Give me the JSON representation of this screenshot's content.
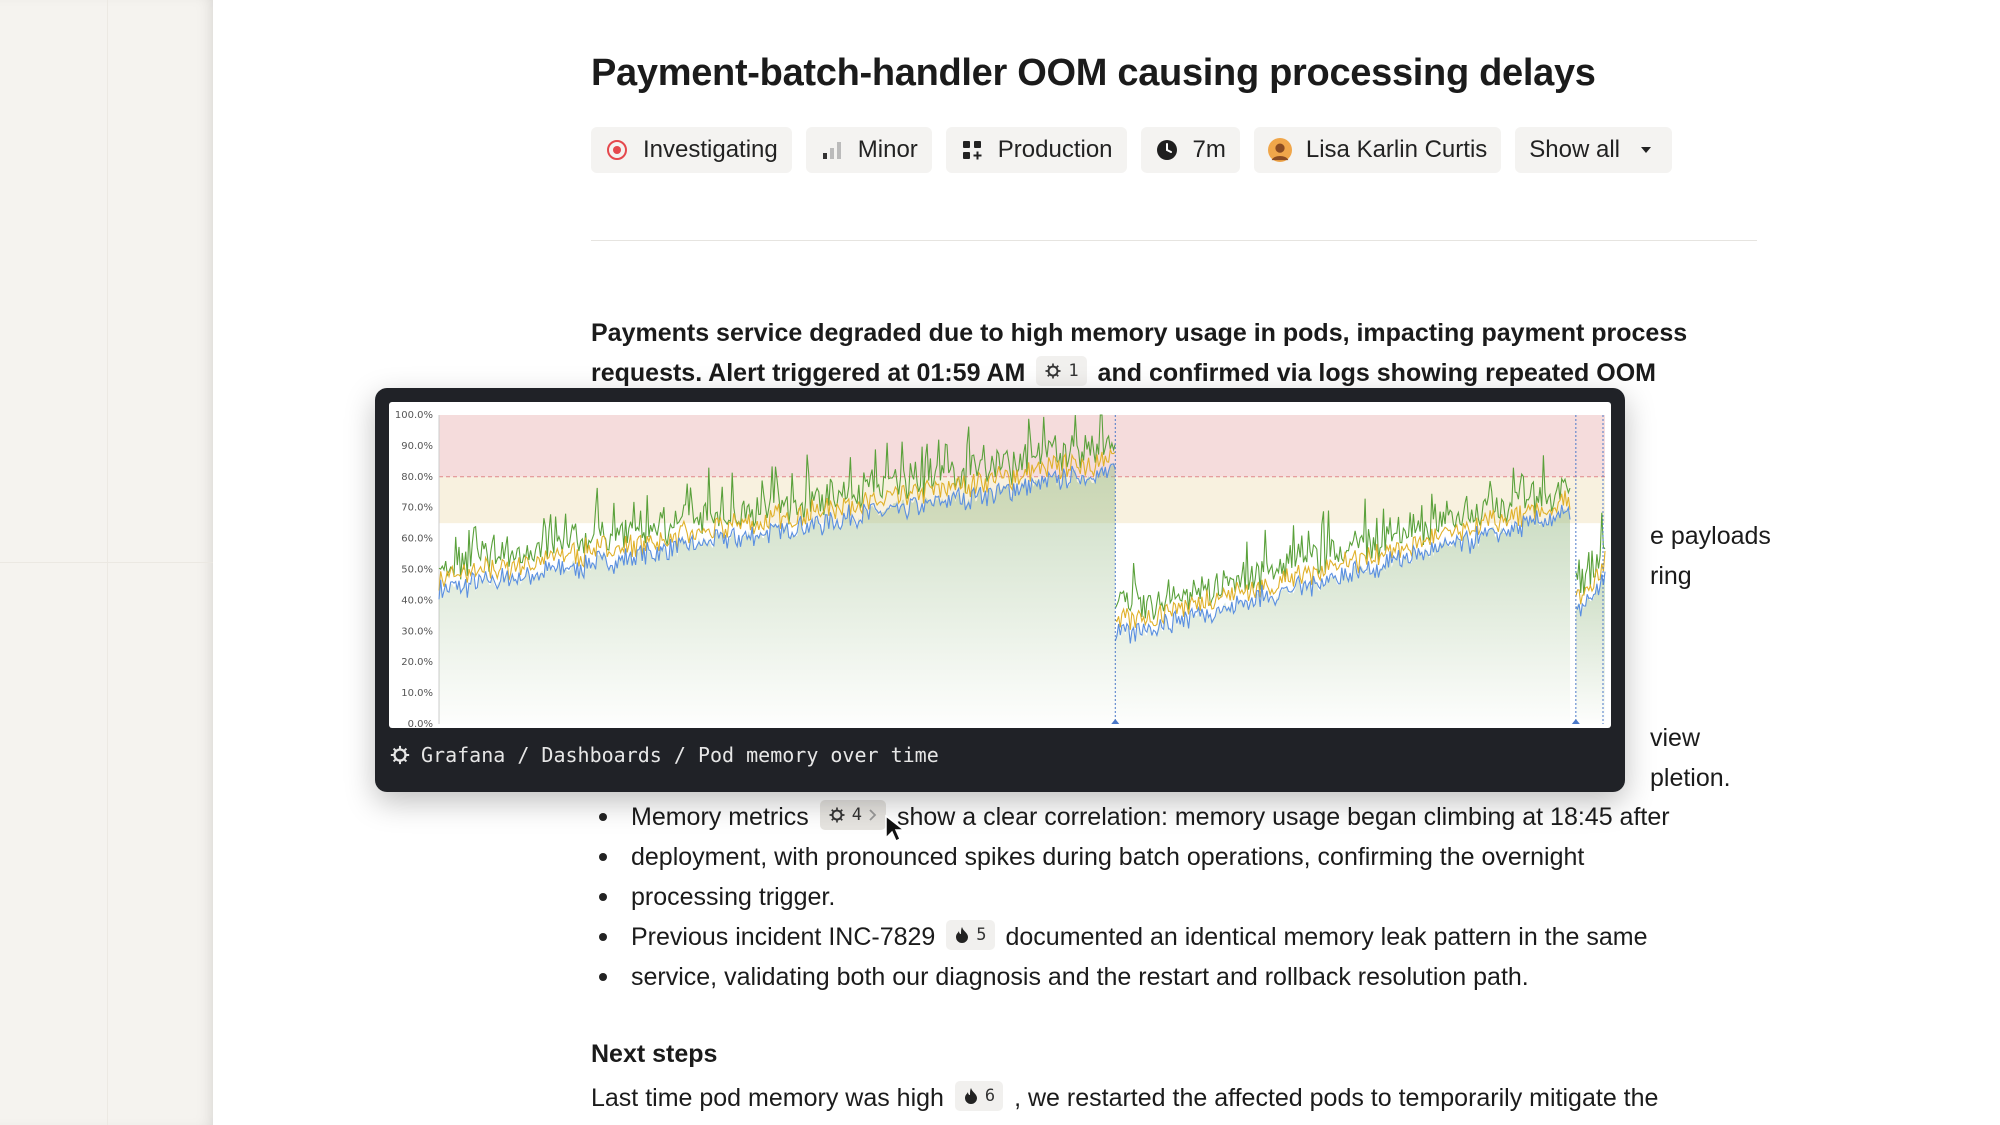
{
  "incident": {
    "title": "Payment-batch-handler OOM causing processing delays",
    "pills": [
      {
        "label": "Investigating",
        "icon": "status-investigating-icon",
        "color": "#e5484d"
      },
      {
        "label": "Minor",
        "icon": "severity-bars-icon"
      },
      {
        "label": "Production",
        "icon": "environment-grid-icon"
      },
      {
        "label": "7m",
        "icon": "clock-icon"
      },
      {
        "label": "Lisa Karlin Curtis",
        "icon": "avatar"
      },
      {
        "label": "Show all",
        "icon": "caret-down-icon"
      }
    ]
  },
  "summary": {
    "intro_line1": "Payments service degraded due to high memory usage in pods, impacting payment process",
    "intro_line2_a": "requests. Alert triggered at 01:59 AM",
    "intro_line2_chip": "1",
    "intro_line2_b": "and confirmed via logs showing repeated OOM",
    "frag_right1": "e payloads",
    "frag_right2": "ring",
    "frag_right3": "view",
    "frag_right4": "pletion."
  },
  "bullets": [
    {
      "line1_a": "Memory metrics",
      "chip": "4",
      "line1_b": "show a clear correlation: memory usage began climbing at 18:45 after",
      "line2": "deployment, with pronounced spikes during batch operations, confirming the overnight",
      "line3": "processing trigger."
    },
    {
      "line1_a": "Previous incident INC-7829",
      "chip": "5",
      "line1_b": "documented an identical memory leak pattern in the same",
      "line2": "service, validating both our diagnosis and the restart and rollback resolution path."
    }
  ],
  "next_steps": {
    "heading": "Next steps",
    "line1_a": "Last time pod memory was high",
    "chip": "6",
    "line1_b": ", we restarted the affected pods to temporarily mitigate the"
  },
  "popover": {
    "caption": "Grafana / Dashboards / Pod memory over time",
    "icon": "grafana-icon"
  },
  "colors": {
    "series_green": "#5aa13b",
    "series_yellow": "#e0b12a",
    "series_blue": "#5a8fe0",
    "threshold_red": "#f5dcdc",
    "threshold_yellow": "#f8f1df"
  },
  "chart_data": {
    "type": "line",
    "title": "",
    "ylim": [
      0,
      100
    ],
    "yticks": [
      "0.0%",
      "10.0%",
      "20.0%",
      "30.0%",
      "40.0%",
      "50.0%",
      "60.0%",
      "70.0%",
      "80.0%",
      "90.0%",
      "100.0%"
    ],
    "thresholds": [
      {
        "from": 65,
        "to": 80,
        "color": "#f8f1df"
      },
      {
        "from": 80,
        "to": 100,
        "color": "#f5dcdc"
      }
    ],
    "segments": [
      {
        "start": 0.0,
        "end": 0.58,
        "from": 45,
        "to": 84
      },
      {
        "start": 0.58,
        "end": 0.97,
        "from": 30,
        "to": 70
      },
      {
        "start": 0.975,
        "end": 1.0,
        "from": 38,
        "to": 50
      }
    ],
    "series": [
      {
        "name": "",
        "color": "#5aa13b",
        "offset": 6,
        "noise": 8
      },
      {
        "name": "",
        "color": "#e0b12a",
        "offset": 2,
        "noise": 4
      },
      {
        "name": "",
        "color": "#5a8fe0",
        "offset": -2,
        "noise": 3
      }
    ]
  }
}
